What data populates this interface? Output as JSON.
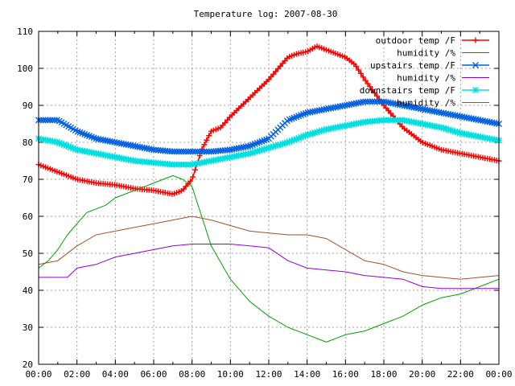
{
  "chart_data": {
    "type": "line",
    "title": "Temperature log: 2007-08-30",
    "xlabel": "",
    "ylabel": "",
    "x_ticks": [
      "00:00",
      "02:00",
      "04:00",
      "06:00",
      "08:00",
      "10:00",
      "12:00",
      "14:00",
      "16:00",
      "18:00",
      "20:00",
      "22:00",
      "00:00"
    ],
    "y_ticks": [
      20,
      30,
      40,
      50,
      60,
      70,
      80,
      90,
      100,
      110
    ],
    "xlim": [
      0,
      24
    ],
    "ylim": [
      20,
      110
    ],
    "grid": true,
    "legend_position": "top-right",
    "series": [
      {
        "name": "outdoor temp /F",
        "color": "#ff0000",
        "marker": "plus",
        "x": [
          0,
          1,
          2,
          3,
          4,
          5,
          6,
          7,
          7.5,
          8,
          8.5,
          9,
          9.5,
          10,
          11,
          12,
          12.5,
          13,
          13.5,
          14,
          14.5,
          15,
          15.5,
          16,
          16.5,
          17,
          18,
          19,
          20,
          21,
          22,
          23,
          24
        ],
        "y": [
          74,
          72,
          70,
          69,
          68.5,
          67.5,
          67,
          66,
          67,
          70,
          78,
          83,
          84,
          87,
          92,
          97,
          100,
          103,
          104,
          104.5,
          106,
          105,
          104,
          103,
          101,
          97,
          90,
          84,
          80,
          78,
          77,
          76,
          75
        ]
      },
      {
        "name": "humidity /%",
        "color": "#00a000",
        "marker": "none",
        "x": [
          0,
          0.5,
          1,
          1.5,
          2,
          2.5,
          3,
          3.5,
          4,
          4.5,
          5,
          5.5,
          6,
          6.5,
          7,
          7.5,
          8,
          8.5,
          9,
          10,
          11,
          12,
          13,
          14,
          15,
          16,
          17,
          18,
          19,
          20,
          21,
          22,
          23,
          24
        ],
        "y": [
          46,
          48,
          51,
          55,
          58,
          61,
          62,
          63,
          65,
          66,
          67,
          68,
          69,
          70,
          71,
          70,
          68,
          60,
          52,
          43,
          37,
          33,
          30,
          28,
          26,
          28,
          29,
          31,
          33,
          36,
          38,
          39,
          41,
          43
        ]
      },
      {
        "name": "upstairs temp /F",
        "color": "#0060e0",
        "marker": "cross",
        "x": [
          0,
          1,
          2,
          3,
          4,
          5,
          6,
          7,
          8,
          9,
          10,
          11,
          12,
          13,
          14,
          15,
          16,
          17,
          18,
          19,
          20,
          21,
          22,
          23,
          24
        ],
        "y": [
          86,
          86,
          83,
          81,
          80,
          79,
          78,
          77.5,
          77.5,
          77.5,
          78,
          79,
          81,
          86,
          88,
          89,
          90,
          91,
          91,
          90,
          89,
          88,
          87,
          86,
          85
        ]
      },
      {
        "name": "humidity /%",
        "color": "#9400d3",
        "marker": "none",
        "x": [
          0,
          1,
          1.5,
          2,
          3,
          4,
          5,
          6,
          7,
          8,
          9,
          10,
          11,
          12,
          13,
          14,
          15,
          16,
          17,
          18,
          19,
          20,
          21,
          22,
          23,
          24
        ],
        "y": [
          43.5,
          43.5,
          43.5,
          46,
          47,
          49,
          50,
          51,
          52,
          52.5,
          52.5,
          52.5,
          52,
          51.5,
          48,
          46,
          45.5,
          45,
          44,
          43.5,
          43,
          41,
          40.5,
          40.5,
          40.5,
          40.5
        ]
      },
      {
        "name": "downstairs temp /F",
        "color": "#00e0e0",
        "marker": "star",
        "x": [
          0,
          1,
          2,
          3,
          4,
          5,
          6,
          7,
          8,
          9,
          10,
          11,
          12,
          13,
          14,
          15,
          16,
          17,
          18,
          19,
          20,
          21,
          22,
          23,
          24
        ],
        "y": [
          81,
          80,
          78,
          77,
          76,
          75,
          74.5,
          74,
          74,
          75,
          76,
          77,
          78.5,
          80,
          82,
          83.5,
          84.5,
          85.5,
          86,
          86,
          85,
          84,
          82.5,
          81.5,
          80.5
        ]
      },
      {
        "name": "humidity /%",
        "color": "#a0522d",
        "marker": "none",
        "x": [
          0,
          1,
          2,
          3,
          4,
          5,
          6,
          7,
          8,
          9,
          10,
          11,
          12,
          13,
          14,
          15,
          16,
          17,
          18,
          19,
          20,
          21,
          22,
          23,
          24
        ],
        "y": [
          47,
          48,
          52,
          55,
          56,
          57,
          58,
          59,
          60,
          59,
          57.5,
          56,
          55.5,
          55,
          55,
          54,
          51,
          48,
          47,
          45,
          44,
          43.5,
          43,
          43.5,
          44
        ]
      }
    ]
  }
}
